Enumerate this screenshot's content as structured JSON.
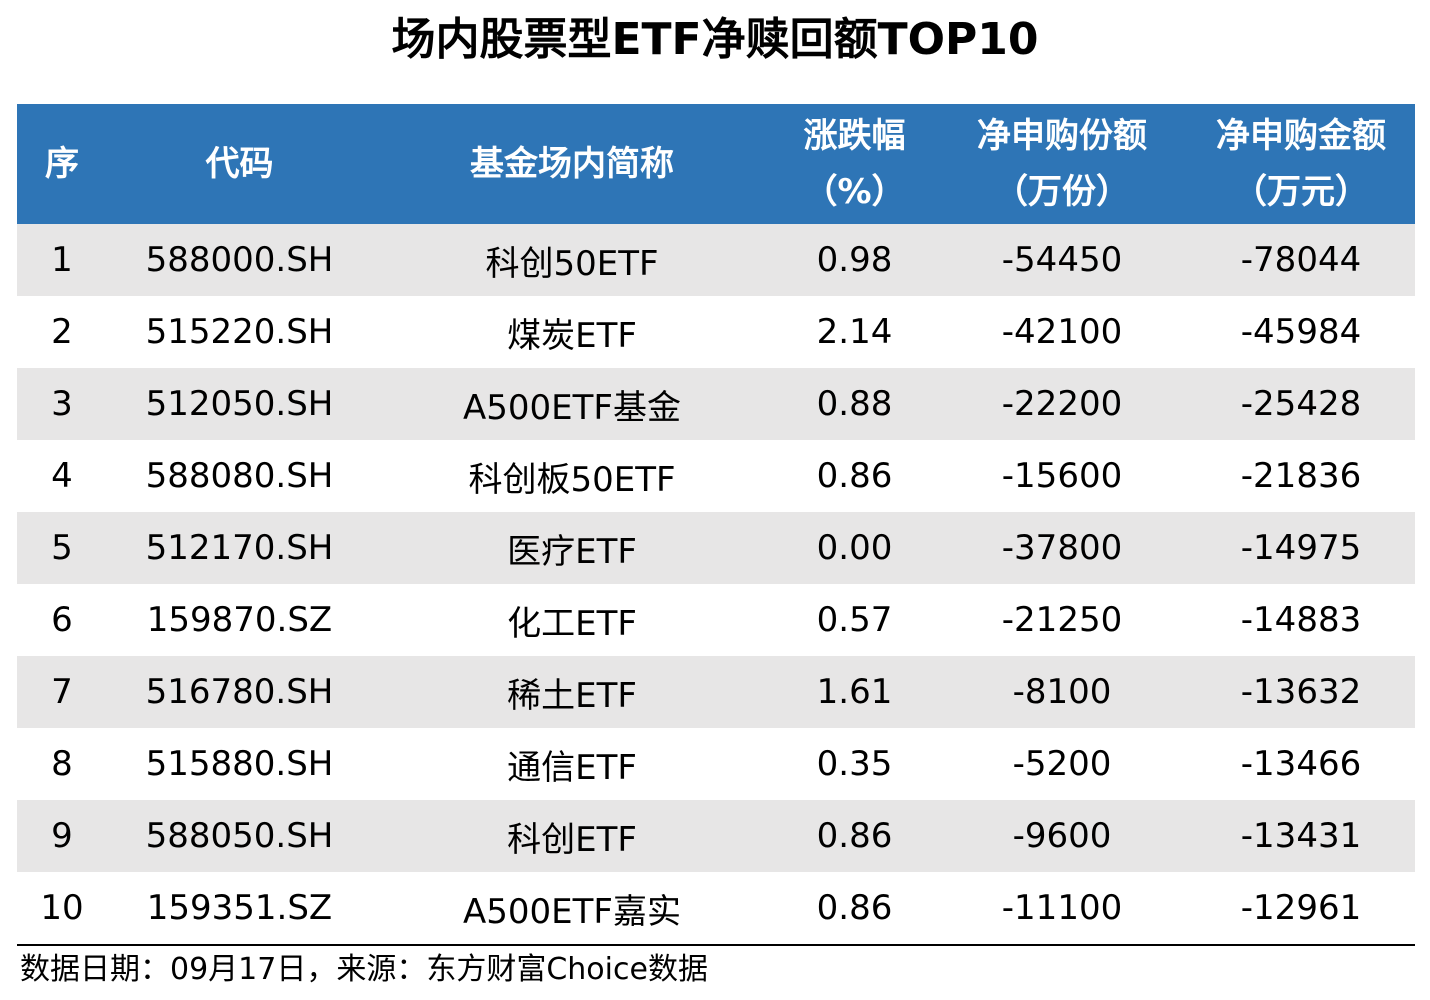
{
  "title": "场内股票型ETF净赎回额TOP10",
  "table": {
    "headers": {
      "seq": "序",
      "code": "代码",
      "name": "基金场内简称",
      "change_line1": "涨跌幅",
      "change_line2": "（%）",
      "shares_line1": "净申购份额",
      "shares_line2": "（万份）",
      "amount_line1": "净申购金额",
      "amount_line2": "（万元）"
    },
    "rows": [
      {
        "seq": "1",
        "code": "588000.SH",
        "name": "科创50ETF",
        "change": "0.98",
        "shares": "-54450",
        "amount": "-78044"
      },
      {
        "seq": "2",
        "code": "515220.SH",
        "name": "煤炭ETF",
        "change": "2.14",
        "shares": "-42100",
        "amount": "-45984"
      },
      {
        "seq": "3",
        "code": "512050.SH",
        "name": "A500ETF基金",
        "change": "0.88",
        "shares": "-22200",
        "amount": "-25428"
      },
      {
        "seq": "4",
        "code": "588080.SH",
        "name": "科创板50ETF",
        "change": "0.86",
        "shares": "-15600",
        "amount": "-21836"
      },
      {
        "seq": "5",
        "code": "512170.SH",
        "name": "医疗ETF",
        "change": "0.00",
        "shares": "-37800",
        "amount": "-14975"
      },
      {
        "seq": "6",
        "code": "159870.SZ",
        "name": "化工ETF",
        "change": "0.57",
        "shares": "-21250",
        "amount": "-14883"
      },
      {
        "seq": "7",
        "code": "516780.SH",
        "name": "稀土ETF",
        "change": "1.61",
        "shares": "-8100",
        "amount": "-13632"
      },
      {
        "seq": "8",
        "code": "515880.SH",
        "name": "通信ETF",
        "change": "0.35",
        "shares": "-5200",
        "amount": "-13466"
      },
      {
        "seq": "9",
        "code": "588050.SH",
        "name": "科创ETF",
        "change": "0.86",
        "shares": "-9600",
        "amount": "-13431"
      },
      {
        "seq": "10",
        "code": "159351.SZ",
        "name": "A500ETF嘉实",
        "change": "0.86",
        "shares": "-11100",
        "amount": "-12961"
      }
    ]
  },
  "footnote": "数据日期：09月17日，来源：东方财富Choice数据",
  "colors": {
    "header_bg": "#2e75b6",
    "header_text": "#ffffff",
    "row_stripe": "#e7e6e6",
    "row_plain": "#ffffff"
  }
}
